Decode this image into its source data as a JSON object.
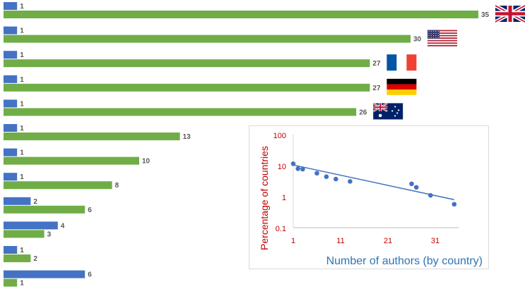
{
  "chart_data": [
    {
      "type": "bar",
      "orientation": "horizontal",
      "series": [
        {
          "color": "#4472c4",
          "values": [
            1,
            1,
            1,
            1,
            1,
            1,
            1,
            1,
            2,
            4,
            1,
            6
          ]
        },
        {
          "color": "#70ad47",
          "values": [
            35,
            30,
            27,
            27,
            26,
            13,
            10,
            8,
            6,
            3,
            2,
            1
          ]
        }
      ],
      "flags": [
        "uk-flag",
        "us-flag",
        "france-flag",
        "germany-flag",
        "australia-flag"
      ],
      "xlim": [
        0,
        35
      ]
    },
    {
      "type": "scatter",
      "xlabel": "Number of authors (by country)",
      "ylabel": "Percentage of countries",
      "yscale": "log",
      "ylim": [
        0.1,
        100
      ],
      "xlim": [
        1,
        36
      ],
      "xticks": [
        "1",
        "11",
        "21",
        "31"
      ],
      "yticks": [
        "0.1",
        "1",
        "10",
        "100"
      ],
      "points": [
        {
          "x": 1,
          "y": 11.5
        },
        {
          "x": 2,
          "y": 8.0
        },
        {
          "x": 3,
          "y": 7.7
        },
        {
          "x": 6,
          "y": 5.7
        },
        {
          "x": 8,
          "y": 4.4
        },
        {
          "x": 10,
          "y": 3.7
        },
        {
          "x": 13,
          "y": 3.1
        },
        {
          "x": 26,
          "y": 2.6
        },
        {
          "x": 27,
          "y": 2.0
        },
        {
          "x": 30,
          "y": 1.1
        },
        {
          "x": 35,
          "y": 0.57
        }
      ],
      "trendline": {
        "from": {
          "x": 1,
          "y": 10.5
        },
        "to": {
          "x": 35,
          "y": 0.8
        }
      },
      "point_color": "#4472c4"
    }
  ]
}
